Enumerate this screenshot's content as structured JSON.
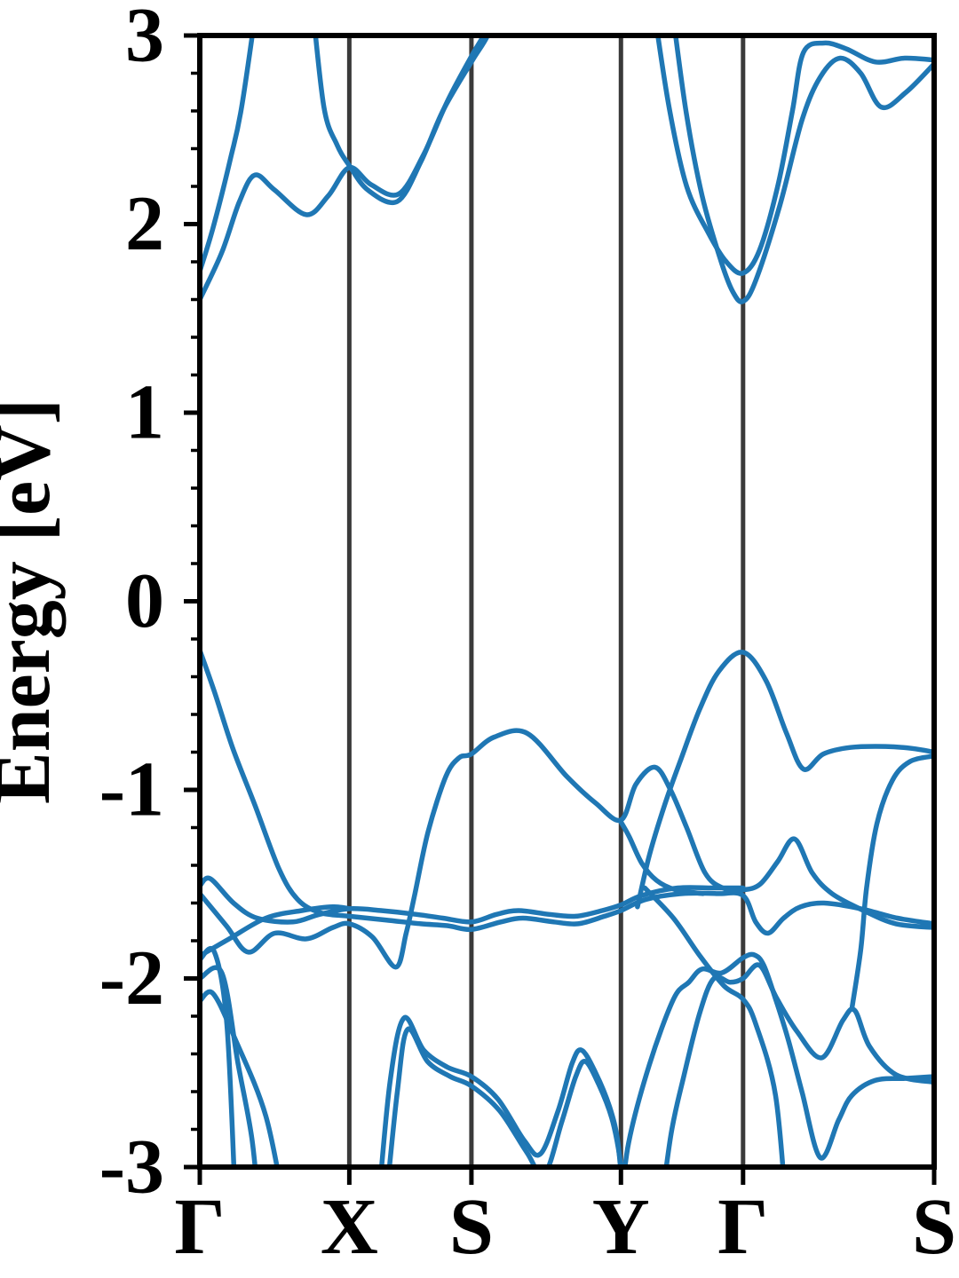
{
  "chart_data": {
    "type": "line",
    "title": "",
    "xlabel": "",
    "ylabel": "Energy [eV]",
    "ylim": [
      -3,
      3
    ],
    "yticks": [
      3,
      2,
      1,
      0,
      -1,
      -2,
      -3
    ],
    "ytick_labels": [
      "3",
      "2",
      "1",
      "0",
      "-1",
      "-2",
      "-3"
    ],
    "minor_tick_step": 0.2,
    "grid": false,
    "legend_position": "none",
    "colors": {
      "band": "#1f77b4",
      "kpoint_line": "#3a3a3a",
      "axis": "#000000",
      "background": "#ffffff"
    },
    "kpath": {
      "labels": [
        "Γ",
        "X",
        "S",
        "Y",
        "Γ",
        "S"
      ],
      "positions": [
        0,
        0.2036,
        0.3699,
        0.5735,
        0.7398,
        1
      ]
    },
    "band_edges": {
      "vbm_eV": -0.26,
      "vbm_k": "Γ",
      "cbm_eV": 1.59,
      "cbm_k": "Γ",
      "gap_type": "direct at Γ"
    },
    "bands": [
      {
        "name": "cb1-gamma1-rise",
        "points": [
          [
            0,
            1.75
          ],
          [
            0.018,
            1.98
          ],
          [
            0.042,
            2.35
          ],
          [
            0.057,
            2.62
          ],
          [
            0.078,
            3.18
          ]
        ]
      },
      {
        "name": "cb1-x-s",
        "points": [
          [
            0.153,
            3.18
          ],
          [
            0.169,
            2.62
          ],
          [
            0.187,
            2.42
          ],
          [
            0.2036,
            2.31
          ],
          [
            0.229,
            2.18
          ],
          [
            0.269,
            2.12
          ],
          [
            0.301,
            2.33
          ],
          [
            0.331,
            2.6
          ],
          [
            0.3699,
            2.86
          ],
          [
            0.392,
            3.0
          ],
          [
            0.41,
            3.18
          ]
        ]
      },
      {
        "name": "cb1-gamma2",
        "points": [
          [
            0.617,
            3.18
          ],
          [
            0.639,
            2.62
          ],
          [
            0.663,
            2.2
          ],
          [
            0.693,
            1.95
          ],
          [
            0.717,
            1.8
          ],
          [
            0.7398,
            1.74
          ],
          [
            0.762,
            1.86
          ],
          [
            0.787,
            2.2
          ],
          [
            0.807,
            2.6
          ],
          [
            0.822,
            2.91
          ],
          [
            0.85,
            2.96
          ],
          [
            0.88,
            2.93
          ],
          [
            0.92,
            2.86
          ],
          [
            0.96,
            2.88
          ],
          [
            1,
            2.87
          ]
        ]
      },
      {
        "name": "cb2-gamma1-x-s",
        "points": [
          [
            0,
            1.6
          ],
          [
            0.03,
            1.85
          ],
          [
            0.054,
            2.12
          ],
          [
            0.075,
            2.26
          ],
          [
            0.102,
            2.18
          ],
          [
            0.145,
            2.05
          ],
          [
            0.175,
            2.15
          ],
          [
            0.2036,
            2.3
          ],
          [
            0.233,
            2.21
          ],
          [
            0.271,
            2.16
          ],
          [
            0.305,
            2.37
          ],
          [
            0.337,
            2.65
          ],
          [
            0.3699,
            2.89
          ],
          [
            0.389,
            3.02
          ],
          [
            0.404,
            3.18
          ]
        ]
      },
      {
        "name": "cb2-gamma2",
        "points": [
          [
            0.642,
            3.18
          ],
          [
            0.662,
            2.6
          ],
          [
            0.684,
            2.15
          ],
          [
            0.71,
            1.8
          ],
          [
            0.726,
            1.64
          ],
          [
            0.7398,
            1.59
          ],
          [
            0.757,
            1.7
          ],
          [
            0.79,
            2.1
          ],
          [
            0.82,
            2.55
          ],
          [
            0.845,
            2.78
          ],
          [
            0.872,
            2.88
          ],
          [
            0.9,
            2.8
          ],
          [
            0.928,
            2.62
          ],
          [
            0.962,
            2.7
          ],
          [
            1,
            2.85
          ]
        ]
      },
      {
        "name": "vb-top-gamma1",
        "points": [
          [
            0,
            -0.26
          ],
          [
            0.02,
            -0.48
          ],
          [
            0.045,
            -0.78
          ],
          [
            0.075,
            -1.08
          ],
          [
            0.108,
            -1.42
          ],
          [
            0.133,
            -1.58
          ],
          [
            0.163,
            -1.65
          ],
          [
            0.2036,
            -1.67
          ],
          [
            0.253,
            -1.69
          ],
          [
            0.301,
            -1.71
          ],
          [
            0.337,
            -1.72
          ],
          [
            0.3699,
            -1.74
          ],
          [
            0.41,
            -1.7
          ],
          [
            0.44,
            -1.68
          ],
          [
            0.482,
            -1.7
          ],
          [
            0.515,
            -1.71
          ],
          [
            0.551,
            -1.67
          ],
          [
            0.5735,
            -1.64
          ],
          [
            0.608,
            -1.58
          ],
          [
            0.657,
            -1.55
          ],
          [
            0.705,
            -1.55
          ],
          [
            0.7398,
            -1.56
          ],
          [
            0.757,
            -1.7
          ],
          [
            0.774,
            -1.76
          ],
          [
            0.795,
            -1.68
          ],
          [
            0.818,
            -1.62
          ],
          [
            0.85,
            -1.6
          ],
          [
            0.9,
            -1.63
          ],
          [
            0.95,
            -1.68
          ],
          [
            1,
            -1.71
          ]
        ]
      },
      {
        "name": "vb-flat-a",
        "points": [
          [
            0,
            -1.51
          ],
          [
            0.014,
            -1.47
          ],
          [
            0.046,
            -1.6
          ],
          [
            0.078,
            -1.68
          ],
          [
            0.127,
            -1.7
          ],
          [
            0.163,
            -1.66
          ],
          [
            0.2036,
            -1.63
          ],
          [
            0.247,
            -1.64
          ],
          [
            0.295,
            -1.66
          ],
          [
            0.331,
            -1.68
          ],
          [
            0.3699,
            -1.7
          ],
          [
            0.404,
            -1.66
          ],
          [
            0.434,
            -1.64
          ],
          [
            0.476,
            -1.66
          ],
          [
            0.512,
            -1.67
          ],
          [
            0.548,
            -1.64
          ],
          [
            0.5735,
            -1.61
          ],
          [
            0.602,
            -1.56
          ],
          [
            0.651,
            -1.52
          ],
          [
            0.699,
            -1.52
          ],
          [
            0.7398,
            -1.52
          ]
        ]
      },
      {
        "name": "vb-dispersive",
        "points": [
          [
            0,
            -1.55
          ],
          [
            0.036,
            -1.72
          ],
          [
            0.066,
            -1.86
          ],
          [
            0.102,
            -1.76
          ],
          [
            0.145,
            -1.79
          ],
          [
            0.181,
            -1.73
          ],
          [
            0.2036,
            -1.71
          ],
          [
            0.235,
            -1.78
          ],
          [
            0.267,
            -1.94
          ],
          [
            0.281,
            -1.76
          ],
          [
            0.293,
            -1.55
          ],
          [
            0.311,
            -1.22
          ],
          [
            0.335,
            -0.93
          ],
          [
            0.353,
            -0.83
          ],
          [
            0.3699,
            -0.81
          ],
          [
            0.401,
            -0.72
          ],
          [
            0.446,
            -0.7
          ],
          [
            0.5,
            -0.93
          ],
          [
            0.539,
            -1.07
          ],
          [
            0.5735,
            -1.16
          ],
          [
            0.594,
            -0.97
          ],
          [
            0.62,
            -0.88
          ],
          [
            0.641,
            -1.0
          ],
          [
            0.663,
            -1.2
          ],
          [
            0.688,
            -1.44
          ],
          [
            0.712,
            -1.52
          ],
          [
            0.7398,
            -1.53
          ],
          [
            0.763,
            -1.5
          ],
          [
            0.787,
            -1.38
          ],
          [
            0.81,
            -1.26
          ],
          [
            0.834,
            -1.44
          ],
          [
            0.861,
            -1.55
          ],
          [
            0.904,
            -1.64
          ],
          [
            0.948,
            -1.71
          ],
          [
            1,
            -1.73
          ]
        ]
      },
      {
        "name": "vb-flat-b",
        "points": [
          [
            0,
            -1.88
          ],
          [
            0.04,
            -1.79
          ],
          [
            0.09,
            -1.68
          ],
          [
            0.139,
            -1.64
          ],
          [
            0.181,
            -1.62
          ],
          [
            0.2036,
            -1.63
          ]
        ]
      },
      {
        "name": "vb-steep-1",
        "points": [
          [
            0,
            -1.9
          ],
          [
            0.02,
            -1.86
          ],
          [
            0.037,
            -2.25
          ],
          [
            0.049,
            -3.25
          ]
        ]
      },
      {
        "name": "vb-steep-2",
        "points": [
          [
            0,
            -2.0
          ],
          [
            0.03,
            -1.97
          ],
          [
            0.052,
            -2.45
          ],
          [
            0.071,
            -2.85
          ],
          [
            0.081,
            -3.25
          ]
        ]
      },
      {
        "name": "vb-steep-3",
        "points": [
          [
            0,
            -2.12
          ],
          [
            0.018,
            -2.08
          ],
          [
            0.048,
            -2.32
          ],
          [
            0.09,
            -2.73
          ],
          [
            0.117,
            -3.25
          ]
        ]
      },
      {
        "name": "vb-low-a",
        "points": [
          [
            0.242,
            -3.25
          ],
          [
            0.259,
            -2.55
          ],
          [
            0.278,
            -2.21
          ],
          [
            0.305,
            -2.38
          ],
          [
            0.337,
            -2.47
          ],
          [
            0.3699,
            -2.52
          ],
          [
            0.406,
            -2.64
          ],
          [
            0.442,
            -2.86
          ],
          [
            0.464,
            -2.93
          ],
          [
            0.488,
            -2.7
          ],
          [
            0.507,
            -2.45
          ],
          [
            0.52,
            -2.38
          ],
          [
            0.539,
            -2.5
          ],
          [
            0.558,
            -2.68
          ],
          [
            0.569,
            -2.86
          ],
          [
            0.576,
            -3.15
          ]
        ]
      },
      {
        "name": "vb-low-b",
        "points": [
          [
            0.252,
            -3.25
          ],
          [
            0.269,
            -2.6
          ],
          [
            0.283,
            -2.27
          ],
          [
            0.31,
            -2.44
          ],
          [
            0.341,
            -2.52
          ],
          [
            0.3699,
            -2.57
          ],
          [
            0.408,
            -2.7
          ],
          [
            0.445,
            -2.92
          ],
          [
            0.469,
            -3.04
          ],
          [
            0.493,
            -2.76
          ],
          [
            0.512,
            -2.52
          ],
          [
            0.525,
            -2.44
          ],
          [
            0.543,
            -2.56
          ],
          [
            0.561,
            -2.74
          ],
          [
            0.572,
            -2.95
          ],
          [
            0.581,
            -3.25
          ]
        ]
      },
      {
        "name": "vb-arc-1",
        "points": [
          [
            0.574,
            -3.2
          ],
          [
            0.584,
            -2.87
          ],
          [
            0.612,
            -2.46
          ],
          [
            0.645,
            -2.11
          ],
          [
            0.666,
            -2.02
          ],
          [
            0.684,
            -1.95
          ],
          [
            0.711,
            -1.97
          ],
          [
            0.7398,
            -1.89
          ],
          [
            0.755,
            -1.875
          ],
          [
            0.768,
            -1.93
          ],
          [
            0.785,
            -2.12
          ],
          [
            0.801,
            -2.32
          ],
          [
            0.82,
            -2.6
          ],
          [
            0.845,
            -2.95
          ],
          [
            0.87,
            -2.75
          ],
          [
            0.888,
            -2.62
          ],
          [
            0.92,
            -2.54
          ],
          [
            0.96,
            -2.53
          ],
          [
            1,
            -2.52
          ]
        ]
      },
      {
        "name": "vb-arc-2",
        "points": [
          [
            0.627,
            -3.25
          ],
          [
            0.642,
            -2.82
          ],
          [
            0.659,
            -2.52
          ],
          [
            0.681,
            -2.18
          ],
          [
            0.7,
            -2.0
          ],
          [
            0.722,
            -2.02
          ],
          [
            0.7398,
            -2.0
          ],
          [
            0.762,
            -1.93
          ],
          [
            0.785,
            -2.1
          ],
          [
            0.813,
            -2.28
          ],
          [
            0.847,
            -2.42
          ],
          [
            0.876,
            -2.22
          ],
          [
            0.892,
            -2.17
          ],
          [
            0.912,
            -2.36
          ],
          [
            0.948,
            -2.51
          ],
          [
            1,
            -2.55
          ]
        ]
      },
      {
        "name": "vb-diagonal",
        "points": [
          [
            0.606,
            -1.52
          ],
          [
            0.645,
            -1.68
          ],
          [
            0.681,
            -1.88
          ],
          [
            0.714,
            -2.04
          ],
          [
            0.7398,
            -2.11
          ],
          [
            0.757,
            -2.24
          ],
          [
            0.784,
            -2.62
          ],
          [
            0.799,
            -3.25
          ]
        ]
      },
      {
        "name": "vb-s-descender",
        "points": [
          [
            0.888,
            -2.16
          ],
          [
            0.9,
            -1.85
          ],
          [
            0.908,
            -1.52
          ],
          [
            0.922,
            -1.18
          ],
          [
            0.943,
            -0.95
          ],
          [
            0.967,
            -0.85
          ],
          [
            1,
            -0.82
          ]
        ]
      },
      {
        "name": "vb-top-gamma2",
        "points": [
          [
            0.596,
            -1.62
          ],
          [
            0.612,
            -1.35
          ],
          [
            0.633,
            -1.08
          ],
          [
            0.654,
            -0.85
          ],
          [
            0.681,
            -0.57
          ],
          [
            0.707,
            -0.37
          ],
          [
            0.7398,
            -0.27
          ],
          [
            0.771,
            -0.42
          ],
          [
            0.799,
            -0.7
          ],
          [
            0.822,
            -0.89
          ],
          [
            0.849,
            -0.81
          ],
          [
            0.886,
            -0.775
          ],
          [
            0.934,
            -0.77
          ],
          [
            0.97,
            -0.78
          ],
          [
            1,
            -0.8
          ]
        ]
      },
      {
        "name": "vb-y-split",
        "points": [
          [
            0.5735,
            -1.17
          ],
          [
            0.585,
            -1.25
          ],
          [
            0.602,
            -1.39
          ],
          [
            0.622,
            -1.48
          ],
          [
            0.648,
            -1.53
          ],
          [
            0.685,
            -1.55
          ]
        ]
      }
    ]
  }
}
